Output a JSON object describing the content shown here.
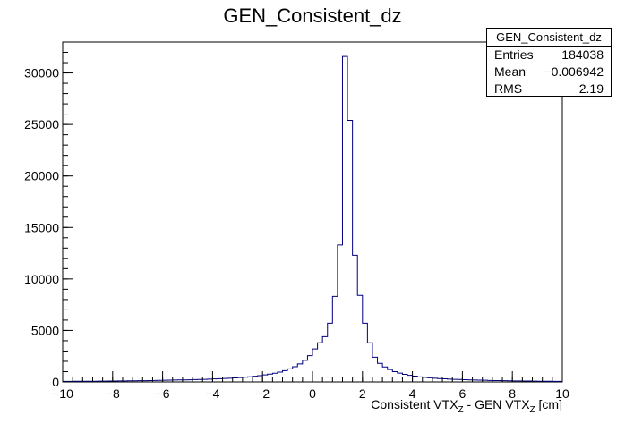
{
  "chart_data": {
    "type": "bar",
    "title": "GEN_Consistent_dz",
    "xlabel": "Consistent VTX_Z - GEN VTX_Z [cm]",
    "xlabel_parts": {
      "a": "Consistent VTX",
      "sub1": "Z",
      "b": " - GEN VTX",
      "sub2": "Z",
      "c": " [cm]"
    },
    "ylabel": "",
    "xlim": [
      -10,
      10
    ],
    "ylim": [
      0,
      33000
    ],
    "bins": 100,
    "x_ticks": [
      "−10",
      "−8",
      "−6",
      "−4",
      "−2",
      "0",
      "2",
      "4",
      "6",
      "8",
      "10"
    ],
    "y_ticks": [
      "0",
      "5000",
      "10000",
      "15000",
      "20000",
      "25000",
      "30000"
    ],
    "x_edges_start": -10,
    "bin_width": 0.2,
    "values": [
      50,
      55,
      60,
      60,
      65,
      70,
      70,
      75,
      80,
      85,
      90,
      95,
      100,
      105,
      110,
      115,
      120,
      130,
      140,
      150,
      160,
      170,
      180,
      190,
      200,
      210,
      225,
      240,
      255,
      270,
      290,
      310,
      335,
      360,
      390,
      420,
      460,
      500,
      550,
      610,
      680,
      760,
      850,
      960,
      1100,
      1270,
      1480,
      1750,
      2100,
      2550,
      3200,
      3800,
      4400,
      5700,
      8300,
      13300,
      31600,
      25400,
      12300,
      8400,
      5700,
      3800,
      2400,
      1800,
      1450,
      1200,
      1000,
      860,
      740,
      640,
      560,
      490,
      440,
      400,
      360,
      330,
      300,
      275,
      255,
      235,
      215,
      200,
      185,
      170,
      158,
      145,
      135,
      125,
      118,
      110,
      102,
      95,
      88,
      82,
      76,
      70,
      66,
      62,
      58,
      54
    ],
    "line_color": "#000080",
    "grid": false,
    "legend": "none",
    "stats": {
      "title": "GEN_Consistent_dz",
      "entries_label": "Entries",
      "entries_value": "184038",
      "mean_label": "Mean",
      "mean_value": "−0.006942",
      "rms_label": "RMS",
      "rms_value": "2.19"
    }
  }
}
